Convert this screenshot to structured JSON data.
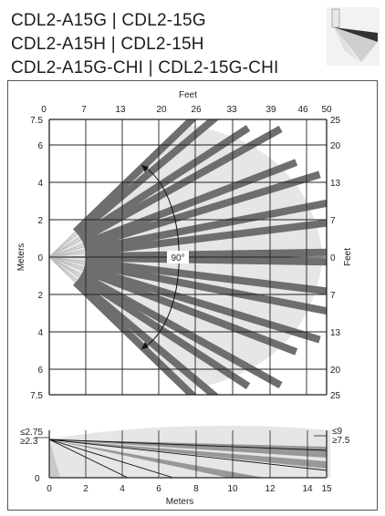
{
  "title_lines": [
    "CDL2-A15G | CDL2-15G",
    "CDL2-A15H | CDL2-15H",
    "CDL2-A15G-CHI | CDL2-15G-CHI"
  ],
  "top_view": {
    "top_axis_title": "Feet",
    "top_ticks": [
      "0",
      "7",
      "13",
      "20",
      "26",
      "33",
      "39",
      "46",
      "50"
    ],
    "left_axis_title": "Meters",
    "left_ticks": [
      "7.5",
      "6",
      "4",
      "2",
      "0",
      "2",
      "4",
      "6",
      "7.5"
    ],
    "right_axis_title": "Feet",
    "right_ticks": [
      "25",
      "20",
      "13",
      "7",
      "0",
      "7",
      "13",
      "20",
      "25"
    ],
    "angle_label": "90°"
  },
  "side_view": {
    "x_axis_title": "Meters",
    "x_ticks": [
      "0",
      "2",
      "4",
      "6",
      "8",
      "10",
      "12",
      "14",
      "15"
    ],
    "left_labels": [
      "≤2.75",
      "≥2.3",
      "0"
    ],
    "right_labels": [
      "≤9",
      "≥7.5"
    ]
  },
  "colors": {
    "zone_fill": "#e6e6e6",
    "beam": "#6e6e6e",
    "grid": "#222222"
  }
}
